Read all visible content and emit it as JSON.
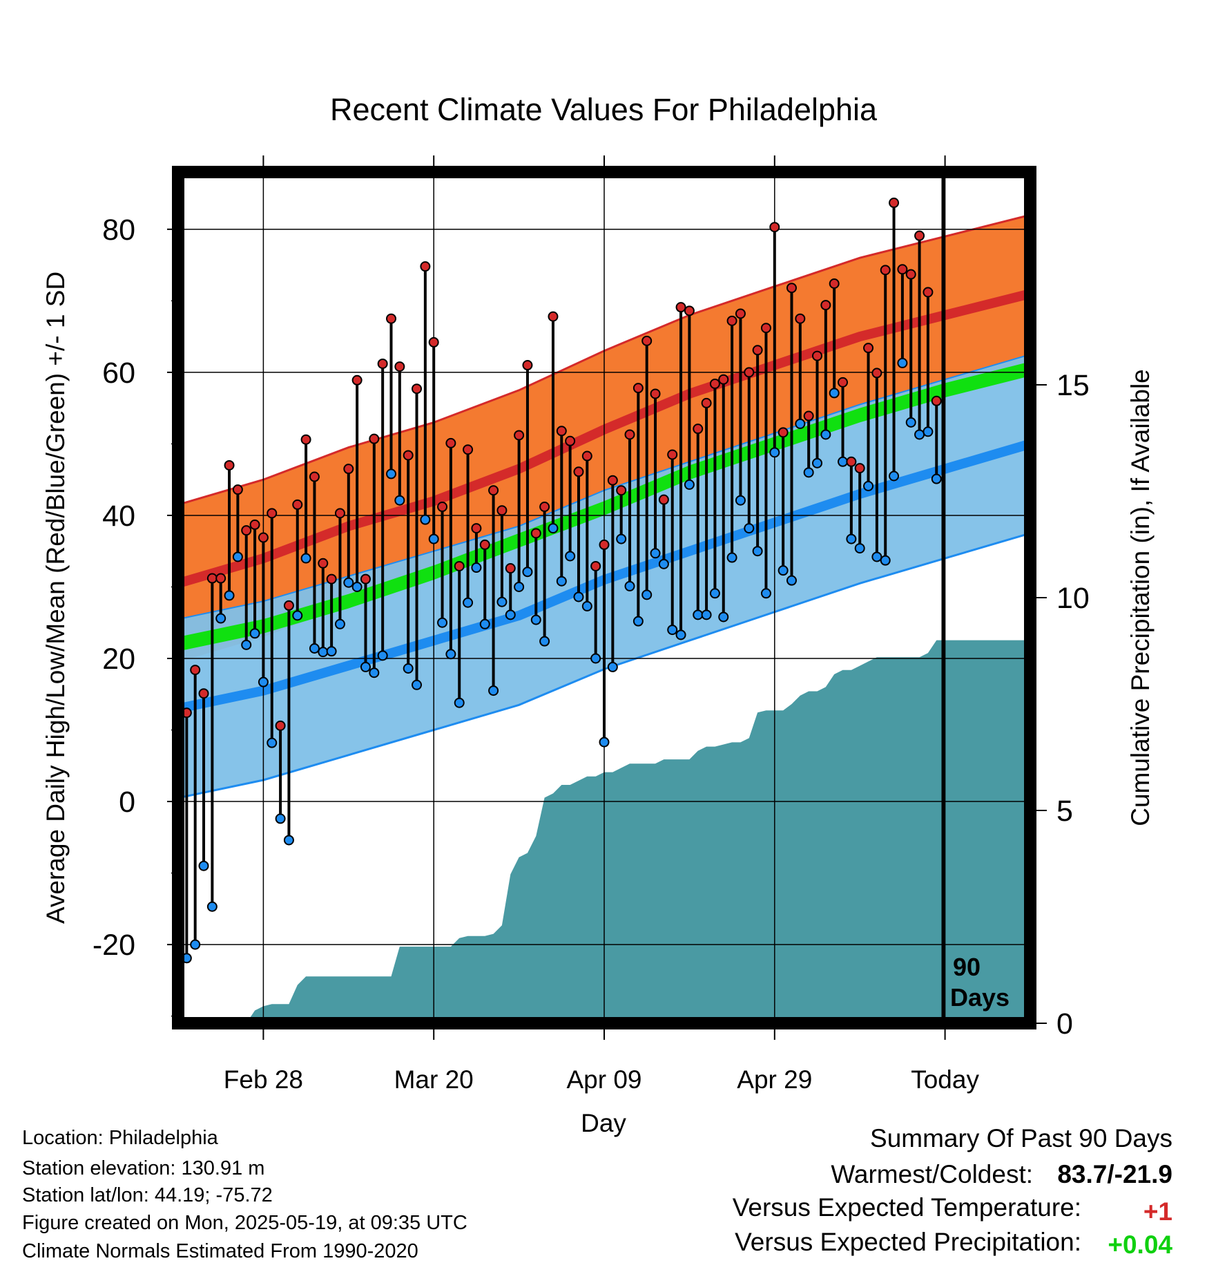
{
  "title": "Recent Climate Values For Philadelphia",
  "y_left_label": "Average Daily High/Low/Mean (Red/Blue/Green) +/- 1 SD",
  "y_right_label": "Cumulative Precipitation (in), If Available",
  "x_label": "Day",
  "today_marker_label": [
    "90",
    "Days"
  ],
  "info": {
    "location": "Location: Philadelphia",
    "elevation": "Station elevation: 130.91 m",
    "latlon": "Station lat/lon: 44.19; -75.72",
    "created": "Figure created on Mon, 2025-05-19, at 09:35 UTC",
    "normals": "Climate Normals Estimated From 1990-2020"
  },
  "summary": {
    "heading": "Summary Of Past 90 Days",
    "warmest_coldest_label": "Warmest/Coldest:",
    "warmest_coldest_value": "83.7/-21.9",
    "temp_label": "Versus Expected Temperature:",
    "temp_value": "+1",
    "precip_label": "Versus Expected Precipitation:",
    "precip_value": "+0.04"
  },
  "colors": {
    "high_band": "#f47a30",
    "high_mean": "#d42a2a",
    "low_band": "#80c0e8",
    "low_mean": "#1e8cf0",
    "mean_line": "#10e010",
    "precip": "#4a9aa3",
    "warm_text": "#d42a2a",
    "wet_text": "#10d010"
  },
  "chart_data": {
    "type": "line",
    "x_range_days": [
      0,
      100
    ],
    "ylim_left": [
      -31,
      88
    ],
    "y_ticks_left": [
      -20,
      0,
      20,
      40,
      60,
      80
    ],
    "ylim_right": [
      0,
      20
    ],
    "y_ticks_right": [
      0,
      5,
      10,
      15
    ],
    "x_ticks": [
      {
        "day": 10,
        "label": "Feb 28"
      },
      {
        "day": 30,
        "label": "Mar 20"
      },
      {
        "day": 50,
        "label": "Apr 09"
      },
      {
        "day": 70,
        "label": "Apr 29"
      },
      {
        "day": 90,
        "label": "Today"
      }
    ],
    "normals": {
      "days": [
        0,
        10,
        20,
        30,
        40,
        50,
        60,
        70,
        80,
        90,
        100
      ],
      "high_mean": [
        30.5,
        34,
        38.5,
        42,
        46.5,
        52,
        57,
        61,
        65,
        68,
        71
      ],
      "high_sd": 11,
      "low_mean": [
        13,
        15.5,
        19,
        22.5,
        26,
        31,
        35,
        39,
        43,
        46.5,
        50
      ],
      "low_sd": 12.5,
      "mean": [
        22,
        24.5,
        28,
        32,
        36.5,
        41,
        46,
        50,
        54,
        57.5,
        60.5
      ],
      "mean_sd": 1
    },
    "daily": {
      "days": [
        0,
        1,
        2,
        3,
        4,
        5,
        6,
        7,
        8,
        9,
        10,
        11,
        12,
        13,
        14,
        15,
        16,
        17,
        18,
        19,
        20,
        21,
        22,
        23,
        24,
        25,
        26,
        27,
        28,
        29,
        30,
        31,
        32,
        33,
        34,
        35,
        36,
        37,
        38,
        39,
        40,
        41,
        42,
        43,
        44,
        45,
        46,
        47,
        48,
        49,
        50,
        51,
        52,
        53,
        54,
        55,
        56,
        57,
        58,
        59,
        60,
        61,
        62,
        63,
        64,
        65,
        66,
        67,
        68,
        69,
        70,
        71,
        72,
        73,
        74,
        75,
        76,
        77,
        78,
        79,
        80,
        81,
        82,
        83,
        84,
        85,
        86,
        87,
        88,
        89
      ],
      "high": [
        16.5,
        12.4,
        18.4,
        15.1,
        31.2,
        31.2,
        47,
        43.6,
        37.9,
        38.7,
        36.9,
        40.3,
        10.6,
        27.4,
        41.5,
        50.6,
        45.4,
        33.3,
        31.1,
        40.3,
        46.5,
        58.9,
        31.1,
        50.7,
        61.2,
        67.5,
        60.8,
        48.4,
        57.7,
        74.8,
        64.2,
        41.2,
        50.1,
        32.9,
        49.2,
        38.2,
        35.9,
        43.5,
        40.7,
        32.6,
        51.2,
        61,
        37.5,
        41.2,
        67.8,
        51.8,
        50.4,
        46.1,
        48.3,
        32.9,
        35.9,
        44.9,
        43.5,
        51.3,
        57.8,
        64.4,
        57,
        42.2,
        48.5,
        69.1,
        68.6,
        52.1,
        55.7,
        58.4,
        59,
        67.2,
        68.2,
        60,
        63.1,
        66.2,
        80.3,
        51.6,
        71.8,
        67.5,
        53.9,
        62.3,
        69.4,
        72.4,
        58.6,
        47.5,
        46.6,
        63.4,
        59.9,
        74.3,
        83.7,
        74.4,
        73.7,
        79.1,
        71.2,
        56
      ],
      "low": [
        1.8,
        -21.9,
        -20,
        -9,
        -14.7,
        25.6,
        28.8,
        34.2,
        21.9,
        23.5,
        16.7,
        8.2,
        -2.4,
        -5.4,
        26,
        34,
        21.4,
        20.9,
        21,
        24.8,
        30.6,
        30,
        18.8,
        18,
        20.4,
        45.8,
        42.1,
        18.6,
        16.3,
        39.4,
        36.7,
        25,
        20.6,
        13.8,
        27.8,
        32.7,
        24.8,
        15.5,
        27.9,
        26.1,
        30,
        32.1,
        25.4,
        22.4,
        38.2,
        30.8,
        34.3,
        28.6,
        27.3,
        20,
        8.3,
        18.8,
        36.7,
        30.1,
        25.2,
        28.9,
        34.7,
        33.2,
        24,
        23.3,
        44.3,
        26.1,
        26.1,
        29.1,
        25.8,
        34.1,
        42.1,
        38.2,
        35,
        29.1,
        48.8,
        32.3,
        30.9,
        52.8,
        46,
        47.3,
        51.3,
        57.1,
        47.5,
        36.7,
        35.4,
        44.1,
        34.2,
        33.7,
        45.5,
        61.3,
        53,
        51.3,
        51.7,
        45.1
      ]
    },
    "precip_cumulative": {
      "days": [
        0,
        8,
        9,
        10,
        11,
        12,
        13,
        14,
        15,
        16,
        17,
        18,
        25,
        26,
        27,
        28,
        29,
        30,
        31,
        32,
        33,
        34,
        35,
        36,
        37,
        38,
        39,
        40,
        41,
        42,
        43,
        44,
        45,
        46,
        47,
        48,
        49,
        50,
        51,
        52,
        53,
        54,
        55,
        56,
        57,
        58,
        59,
        60,
        61,
        62,
        63,
        64,
        65,
        66,
        67,
        68,
        69,
        70,
        71,
        72,
        73,
        74,
        75,
        76,
        77,
        78,
        79,
        80,
        81,
        82,
        83,
        84,
        85,
        86,
        87,
        88,
        89,
        90,
        100
      ],
      "values": [
        0,
        0,
        0.3,
        0.4,
        0.45,
        0.45,
        0.45,
        0.9,
        1.1,
        1.1,
        1.1,
        1.1,
        1.1,
        1.8,
        1.8,
        1.8,
        1.8,
        1.8,
        1.8,
        1.8,
        2,
        2.05,
        2.05,
        2.05,
        2.1,
        2.3,
        3.5,
        3.9,
        4,
        4.4,
        5.3,
        5.4,
        5.6,
        5.6,
        5.7,
        5.8,
        5.8,
        5.9,
        5.9,
        6,
        6.1,
        6.1,
        6.1,
        6.1,
        6.2,
        6.2,
        6.2,
        6.2,
        6.4,
        6.5,
        6.5,
        6.55,
        6.6,
        6.6,
        6.7,
        7.3,
        7.35,
        7.35,
        7.35,
        7.5,
        7.7,
        7.8,
        7.8,
        7.9,
        8.2,
        8.3,
        8.3,
        8.4,
        8.5,
        8.6,
        8.6,
        8.6,
        8.6,
        8.6,
        8.6,
        8.7,
        9.0,
        9.0,
        9.0
      ]
    }
  }
}
